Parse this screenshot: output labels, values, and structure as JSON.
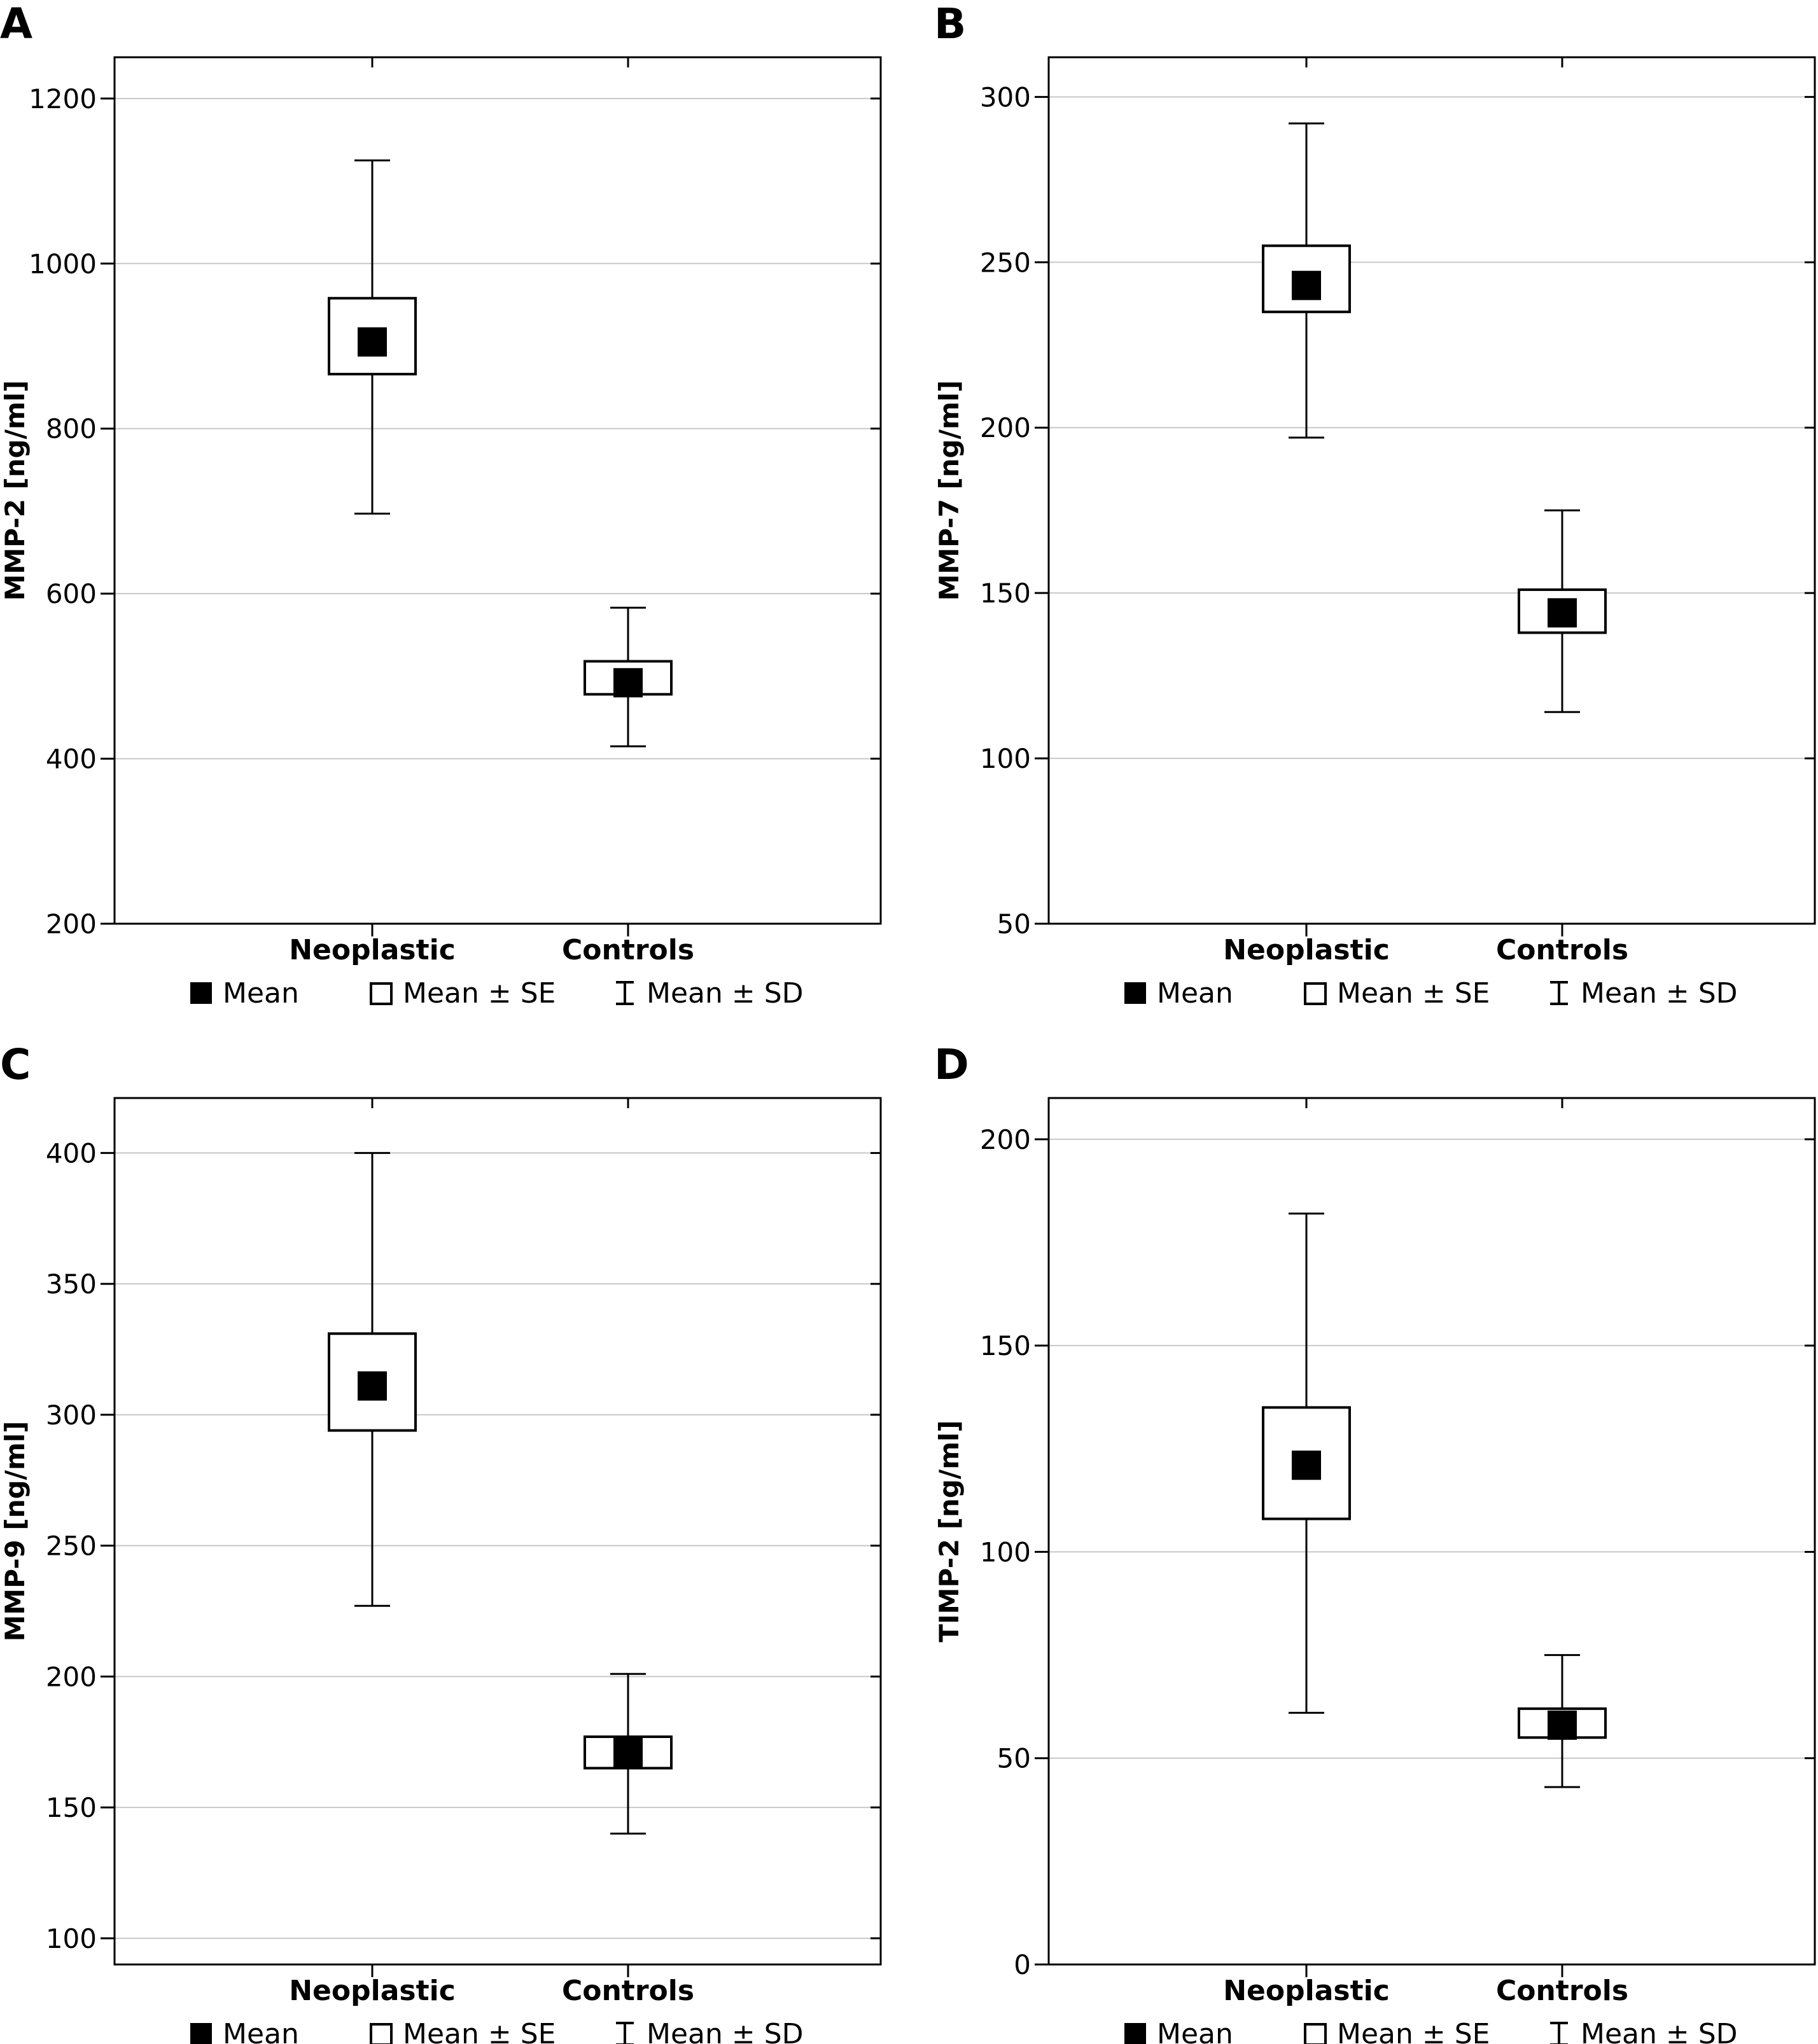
{
  "legend": {
    "mean_label": "Mean",
    "se_label": "Mean ± SE",
    "sd_label": "Mean ± SD"
  },
  "chart_data": [
    {
      "type": "box",
      "panel_label": "A",
      "ylabel": "MMP-2 [ng/ml]",
      "categories": [
        "Neoplastic",
        "Controls"
      ],
      "ylim": [
        200,
        1250
      ],
      "yticks": [
        200,
        400,
        600,
        800,
        1000,
        1200
      ],
      "grid": true,
      "legend_position": "bottom",
      "groups": [
        {
          "name": "Neoplastic",
          "mean": 905,
          "se_low": 866,
          "se_high": 958,
          "sd_low": 697,
          "sd_high": 1125
        },
        {
          "name": "Controls",
          "mean": 492,
          "se_low": 478,
          "se_high": 518,
          "sd_low": 415,
          "sd_high": 583
        }
      ]
    },
    {
      "type": "box",
      "panel_label": "B",
      "ylabel": "MMP-7 [ng/ml]",
      "categories": [
        "Neoplastic",
        "Controls"
      ],
      "ylim": [
        50,
        312
      ],
      "yticks": [
        50,
        100,
        150,
        200,
        250,
        300
      ],
      "grid": true,
      "legend_position": "bottom",
      "groups": [
        {
          "name": "Neoplastic",
          "mean": 243,
          "se_low": 235,
          "se_high": 255,
          "sd_low": 197,
          "sd_high": 292
        },
        {
          "name": "Controls",
          "mean": 144,
          "se_low": 138,
          "se_high": 151,
          "sd_low": 114,
          "sd_high": 175
        }
      ]
    },
    {
      "type": "box",
      "panel_label": "C",
      "ylabel": "MMP-9 [ng/ml]",
      "categories": [
        "Neoplastic",
        "Controls"
      ],
      "ylim": [
        90,
        421
      ],
      "yticks": [
        100,
        150,
        200,
        250,
        300,
        350,
        400
      ],
      "grid": true,
      "legend_position": "bottom",
      "groups": [
        {
          "name": "Neoplastic",
          "mean": 311,
          "se_low": 294,
          "se_high": 331,
          "sd_low": 227,
          "sd_high": 400
        },
        {
          "name": "Controls",
          "mean": 171,
          "se_low": 165,
          "se_high": 177,
          "sd_low": 140,
          "sd_high": 201
        }
      ]
    },
    {
      "type": "box",
      "panel_label": "D",
      "ylabel": "TIMP-2 [ng/ml]",
      "categories": [
        "Neoplastic",
        "Controls"
      ],
      "ylim": [
        0,
        210
      ],
      "yticks": [
        0,
        50,
        100,
        150,
        200
      ],
      "grid": true,
      "legend_position": "bottom",
      "groups": [
        {
          "name": "Neoplastic",
          "mean": 121,
          "se_low": 108,
          "se_high": 135,
          "sd_low": 61,
          "sd_high": 182
        },
        {
          "name": "Controls",
          "mean": 58,
          "se_low": 55,
          "se_high": 62,
          "sd_low": 43,
          "sd_high": 75
        }
      ]
    }
  ]
}
